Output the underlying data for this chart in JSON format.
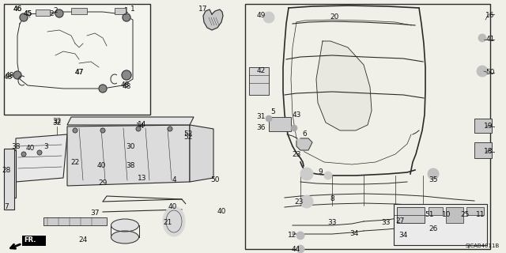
{
  "background_color": "#f0f0f0",
  "diagram_code": "SJCAB4011B",
  "fig_width": 6.4,
  "fig_height": 3.2,
  "dpi": 100
}
